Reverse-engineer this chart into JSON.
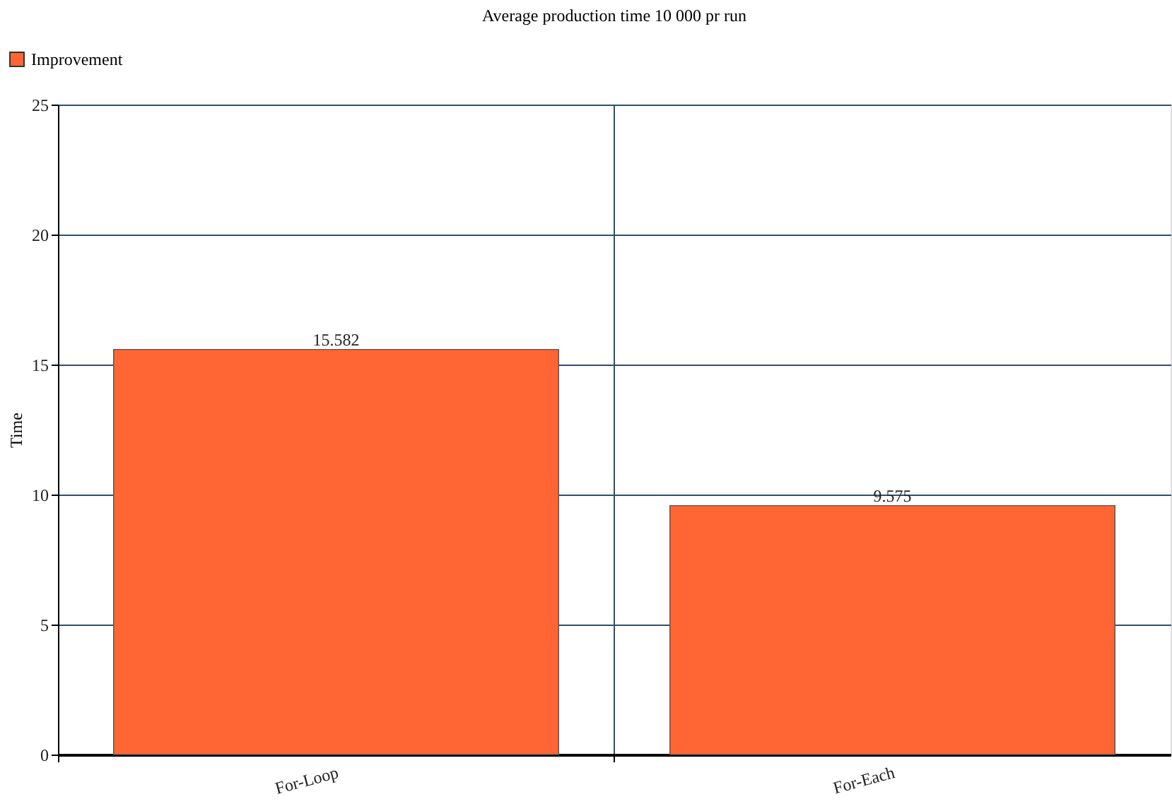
{
  "chart_data": {
    "type": "bar",
    "title": "Average production time 10 000 pr run",
    "ylabel": "Time",
    "categories": [
      "For-Loop",
      "For-Each"
    ],
    "series": [
      {
        "name": "Improvement",
        "color": "#ff6633",
        "values": [
          15.582,
          9.575
        ]
      }
    ],
    "ylim": [
      0,
      25
    ],
    "yticks": [
      0,
      5,
      10,
      15,
      20,
      25
    ],
    "grid": true,
    "legend": "top left",
    "data_labels": true
  }
}
